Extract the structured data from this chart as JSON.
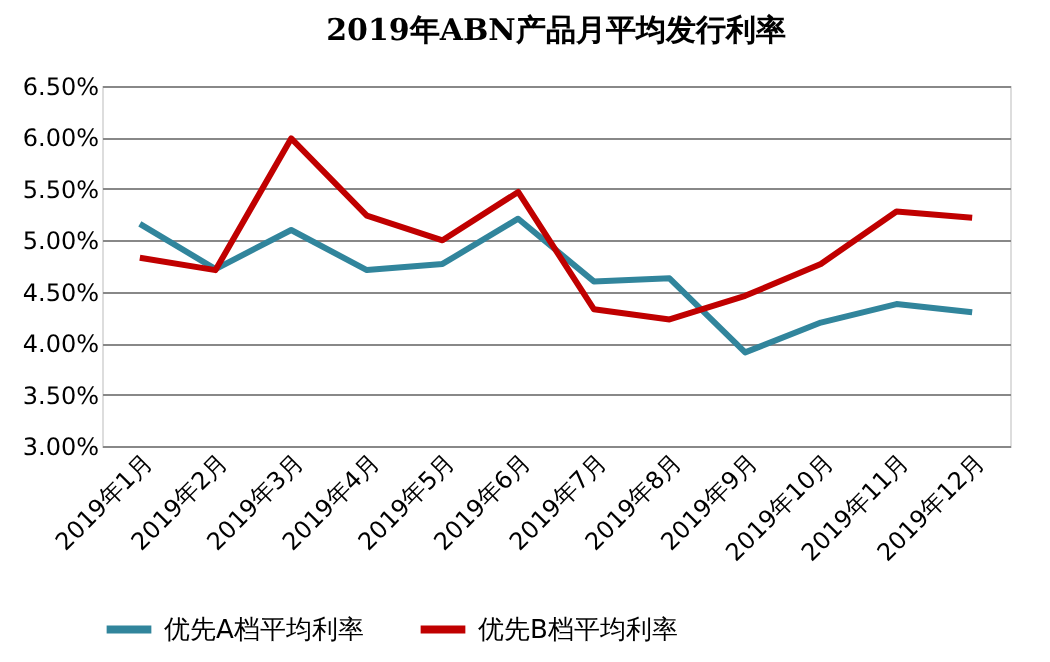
{
  "chart_data": {
    "type": "line",
    "title": "2019年ABN产品月平均发行利率",
    "categories": [
      "2019年1月",
      "2019年2月",
      "2019年3月",
      "2019年4月",
      "2019年5月",
      "2019年6月",
      "2019年7月",
      "2019年8月",
      "2019年9月",
      "2019年10月",
      "2019年11月",
      "2019年12月"
    ],
    "series": [
      {
        "name": "优先A档平均利率",
        "color": "#31859c",
        "values": [
          5.16,
          4.72,
          5.1,
          4.71,
          4.77,
          5.21,
          4.6,
          4.63,
          3.91,
          4.2,
          4.38,
          4.3
        ]
      },
      {
        "name": "优先B档平均利率",
        "color": "#c00000",
        "values": [
          4.83,
          4.71,
          5.99,
          5.24,
          5.0,
          5.47,
          4.33,
          4.23,
          4.46,
          4.77,
          5.28,
          5.22
        ]
      }
    ],
    "ylim": [
      3.0,
      6.5
    ],
    "yticks": [
      {
        "value": 3.0,
        "label": "3.00%"
      },
      {
        "value": 3.5,
        "label": "3.50%"
      },
      {
        "value": 4.0,
        "label": "4.00%"
      },
      {
        "value": 4.5,
        "label": "4.50%"
      },
      {
        "value": 5.0,
        "label": "5.00%"
      },
      {
        "value": 5.5,
        "label": "5.50%"
      },
      {
        "value": 6.0,
        "label": "6.00%"
      },
      {
        "value": 6.5,
        "label": "6.50%"
      }
    ],
    "grid": "y",
    "legend": "bottom",
    "marker": "none",
    "line_style": "solid"
  }
}
